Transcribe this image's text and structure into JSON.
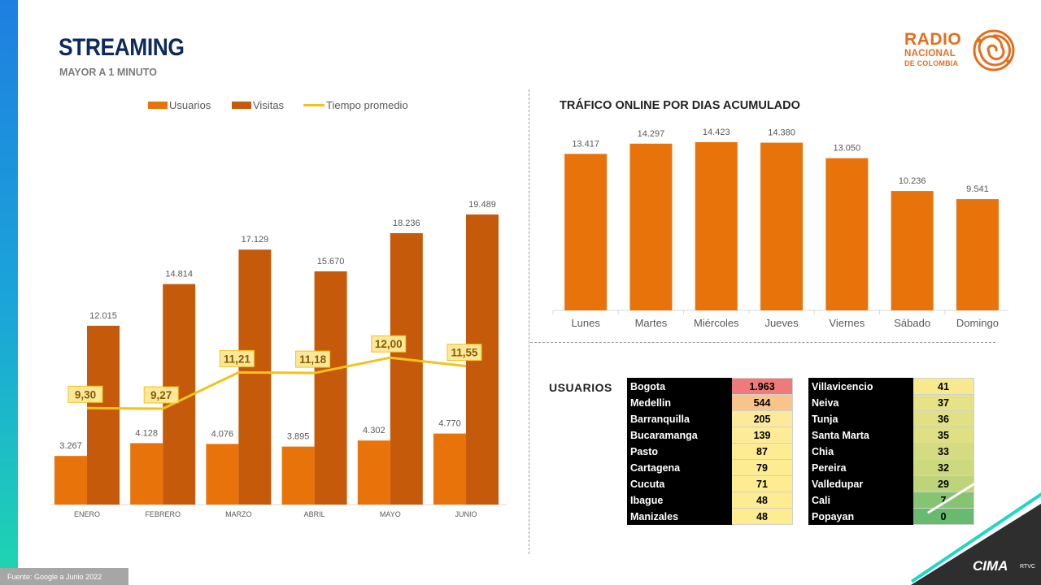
{
  "header": {
    "title": "STREAMING",
    "subtitle": "MAYOR A 1 MINUTO"
  },
  "logo": {
    "line1": "RADIO",
    "line2": "NACIONAL",
    "line3": "DE COLOMBIA"
  },
  "chart_data": [
    {
      "type": "bar",
      "title": "",
      "categories": [
        "ENERO",
        "FEBRERO",
        "MARZO",
        "ABRIL",
        "MAYO",
        "JUNIO"
      ],
      "series": [
        {
          "name": "Usuarios",
          "type": "bar",
          "values": [
            3267,
            4128,
            4076,
            3895,
            4302,
            4770
          ],
          "labels": [
            "3.267",
            "4.128",
            "4.076",
            "3.895",
            "4.302",
            "4.770"
          ],
          "color": "#e8730a"
        },
        {
          "name": "Visitas",
          "type": "bar",
          "values": [
            12015,
            14814,
            17129,
            15670,
            18236,
            19489
          ],
          "labels": [
            "12.015",
            "14.814",
            "17.129",
            "15.670",
            "18.236",
            "19.489"
          ],
          "color": "#c55a0a"
        },
        {
          "name": "Tiempo promedio",
          "type": "line",
          "values": [
            9.3,
            9.27,
            11.21,
            11.18,
            12.0,
            11.55
          ],
          "labels": [
            "9,30",
            "9,27",
            "11,21",
            "11,18",
            "12,00",
            "11,55"
          ],
          "color": "#f3c21a"
        }
      ],
      "legend": "top",
      "grid": false
    },
    {
      "type": "bar",
      "title": "TRÁFICO ONLINE POR DIAS ACUMULADO",
      "categories": [
        "Lunes",
        "Martes",
        "Miércoles",
        "Jueves",
        "Viernes",
        "Sábado",
        "Domingo"
      ],
      "values": [
        13417,
        14297,
        14423,
        14380,
        13050,
        10236,
        9541
      ],
      "labels": [
        "13.417",
        "14.297",
        "14.423",
        "14.380",
        "13.050",
        "10.236",
        "9.541"
      ],
      "color": "#e8730a",
      "grid": false
    }
  ],
  "usuarios": {
    "label": "USUARIOS",
    "left": [
      {
        "city": "Bogota",
        "value": "1.963",
        "color": "#f07a7a"
      },
      {
        "city": "Medellin",
        "value": "544",
        "color": "#f8c48a"
      },
      {
        "city": "Barranquilla",
        "value": "205",
        "color": "#fde99a"
      },
      {
        "city": "Bucaramanga",
        "value": "139",
        "color": "#feeb96"
      },
      {
        "city": "Pasto",
        "value": "87",
        "color": "#feec92"
      },
      {
        "city": "Cartagena",
        "value": "79",
        "color": "#feec92"
      },
      {
        "city": "Cucuta",
        "value": "71",
        "color": "#feec92"
      },
      {
        "city": "Ibague",
        "value": "48",
        "color": "#feec90"
      },
      {
        "city": "Manizales",
        "value": "48",
        "color": "#feec90"
      }
    ],
    "right": [
      {
        "city": "Villavicencio",
        "value": "41",
        "color": "#f9e98e"
      },
      {
        "city": "Neiva",
        "value": "37",
        "color": "#e6e286"
      },
      {
        "city": "Tunja",
        "value": "36",
        "color": "#e2e084"
      },
      {
        "city": "Santa Marta",
        "value": "35",
        "color": "#dfdf84"
      },
      {
        "city": "Chia",
        "value": "33",
        "color": "#d4db80"
      },
      {
        "city": "Pereira",
        "value": "32",
        "color": "#cdd97e"
      },
      {
        "city": "Valledupar",
        "value": "29",
        "color": "#bdd47a"
      },
      {
        "city": "Cali",
        "value": "7",
        "color": "#86c474"
      },
      {
        "city": "Popayan",
        "value": "0",
        "color": "#68bb6e"
      }
    ]
  },
  "footer": {
    "source": "Fuente: Google a Junio 2022",
    "brand": "CIMA",
    "brand_sub": "RTVC"
  }
}
